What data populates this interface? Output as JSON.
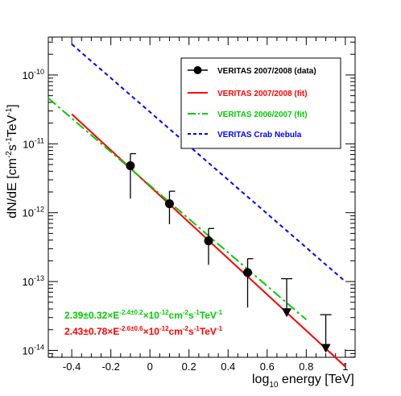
{
  "chart_data": {
    "type": "scatter",
    "xlabel": {
      "base": "log",
      "sub": "10",
      "rest": " energy [TeV]"
    },
    "ylabel": {
      "a": "dN/dE [cm",
      "a_sup": "-2",
      "b": "s",
      "b_sup": "-1",
      "c": "TeV",
      "c_sup": "-1",
      "d": "]"
    },
    "x_ticks": [
      "-0.4",
      "-0.2",
      "0",
      "0.2",
      "0.4",
      "0.6",
      "0.8",
      "1"
    ],
    "y_ticks": [
      {
        "base": "10",
        "exp": "-10"
      },
      {
        "base": "10",
        "exp": "-11"
      },
      {
        "base": "10",
        "exp": "-12"
      },
      {
        "base": "10",
        "exp": "-13"
      },
      {
        "base": "10",
        "exp": "-14"
      }
    ],
    "xlim": [
      -0.52,
      1.05
    ],
    "ylim_log10": [
      -14.1,
      -9.45
    ],
    "y_scale": "log",
    "legend": {
      "placement": "top-right",
      "entries": [
        {
          "label": "VERITAS 2007/2008 (data)",
          "style": "marker",
          "color": "#000000"
        },
        {
          "label": "VERITAS 2007/2008 (fit)",
          "style": "solid",
          "color": "#ff0000"
        },
        {
          "label": "VERITAS 2006/2007 (fit)",
          "style": "dashdot",
          "color": "#00cc00"
        },
        {
          "label": "VERITAS Crab Nebula",
          "style": "dashed",
          "color": "#0000ff"
        }
      ]
    },
    "points": [
      {
        "x": -0.1,
        "y": 4.8e-12,
        "yerr_low": 1.6e-12,
        "yerr_high": 7.2e-12
      },
      {
        "x": 0.1,
        "y": 1.35e-12,
        "yerr_low": 6.8e-13,
        "yerr_high": 2.05e-12
      },
      {
        "x": 0.3,
        "y": 3.9e-13,
        "yerr_low": 1.75e-13,
        "yerr_high": 5.9e-13
      },
      {
        "x": 0.5,
        "y": 1.35e-13,
        "yerr_low": 4.2e-14,
        "yerr_high": 2.15e-13
      }
    ],
    "upper_limits": [
      {
        "x": 0.7,
        "y": 3.3e-14,
        "top": 1.1e-13
      },
      {
        "x": 0.9,
        "y": 1e-14,
        "top": 3.3e-14
      }
    ],
    "series": [
      {
        "name": "VERITAS 2007/2008 (fit)",
        "color": "#ff0000",
        "x": [
          -0.4,
          1.0
        ],
        "y": [
          2.7e-11,
          5.8e-15
        ]
      },
      {
        "name": "VERITAS 2006/2007 (fit)",
        "color": "#00cc00",
        "x": [
          -0.52,
          0.8
        ],
        "y": [
          4.6e-11,
          2.8e-14
        ]
      },
      {
        "name": "VERITAS Crab Nebula",
        "color": "#0000ff",
        "x": [
          -0.4,
          1.0
        ],
        "y": [
          2.8e-10,
          1e-13
        ]
      }
    ],
    "annotations": [
      {
        "color": "#00cc00",
        "a": "2.39±0.32×E",
        "a_sup": "-2.4±0.2",
        "b": "×10",
        "b_sup": "-12",
        "c": "cm",
        "c_sup": "-2",
        "d": "s",
        "d_sup": "-1",
        "e": "TeV",
        "e_sup": "-1"
      },
      {
        "color": "#ff0000",
        "a": "2.43±0.78×E",
        "a_sup": "-2.6±0.6",
        "b": "×10",
        "b_sup": "-12",
        "c": "cm",
        "c_sup": "-2",
        "d": "s",
        "d_sup": "-1",
        "e": "TeV",
        "e_sup": "-1"
      }
    ]
  }
}
